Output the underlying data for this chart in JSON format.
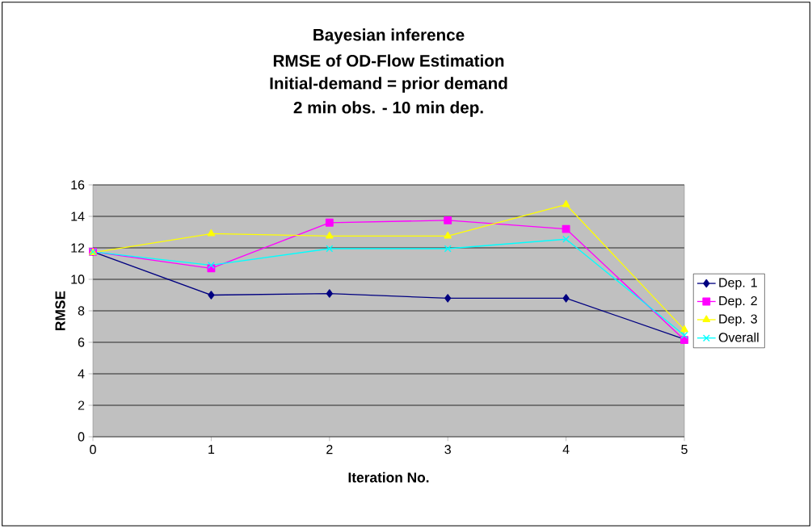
{
  "chart_data": {
    "type": "line",
    "title": "Bayesian inference",
    "subtitle": "RMSE of OD-Flow Estimation",
    "annotations": [
      "Initial-demand = prior demand",
      "2 min obs. - 10 min dep."
    ],
    "xlabel": "Iteration No.",
    "ylabel": "RMSE",
    "x": [
      0,
      1,
      2,
      3,
      4,
      5
    ],
    "xlim": [
      0,
      5
    ],
    "xticks": [
      0,
      1,
      2,
      3,
      4,
      5
    ],
    "ylim": [
      0,
      16
    ],
    "yticks": [
      0,
      2,
      4,
      6,
      8,
      10,
      12,
      14,
      16
    ],
    "grid": "y",
    "legend": "right",
    "series": [
      {
        "name": "Dep. 1",
        "color": "#000080",
        "marker": "diamond",
        "values": [
          11.75,
          9.0,
          9.1,
          8.8,
          8.8,
          6.2
        ]
      },
      {
        "name": "Dep. 2",
        "color": "#ff00ff",
        "marker": "square",
        "values": [
          11.75,
          10.7,
          13.6,
          13.75,
          13.2,
          6.15
        ]
      },
      {
        "name": "Dep. 3",
        "color": "#ffff00",
        "marker": "triangle",
        "values": [
          11.7,
          12.9,
          12.75,
          12.75,
          14.75,
          6.8
        ]
      },
      {
        "name": "Overall",
        "color": "#00ffff",
        "marker": "cross",
        "values": [
          11.75,
          10.9,
          11.95,
          11.95,
          12.55,
          6.45
        ]
      }
    ]
  }
}
